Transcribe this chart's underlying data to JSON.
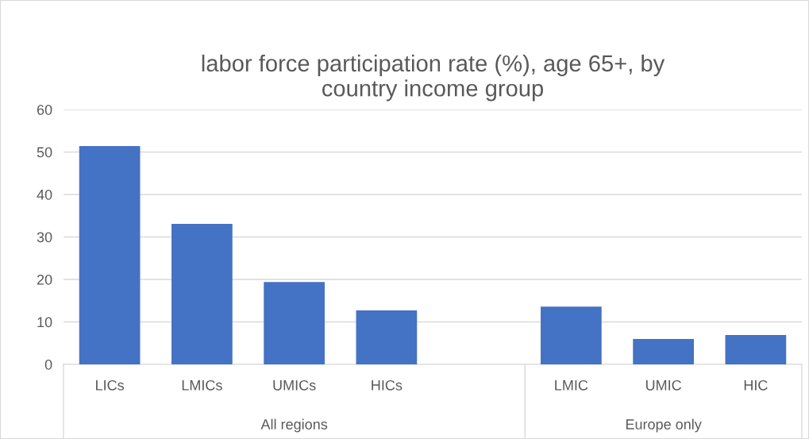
{
  "chart_data": {
    "type": "bar",
    "title": "labor force participation rate (%), age 65+, by\ncountry income group",
    "categories": [
      "LICs",
      "LMICs",
      "UMICs",
      "HICs",
      null,
      "LMIC",
      "UMIC",
      "HIC"
    ],
    "values": [
      51.4,
      33.1,
      19.4,
      12.7,
      null,
      13.6,
      6.0,
      6.9
    ],
    "color": "#4472c4",
    "ylim": [
      0,
      60
    ],
    "yticks": [
      0,
      10,
      20,
      30,
      40,
      50,
      60
    ],
    "grid": "y",
    "annotations": [
      "All regions",
      "Europe only"
    ]
  }
}
